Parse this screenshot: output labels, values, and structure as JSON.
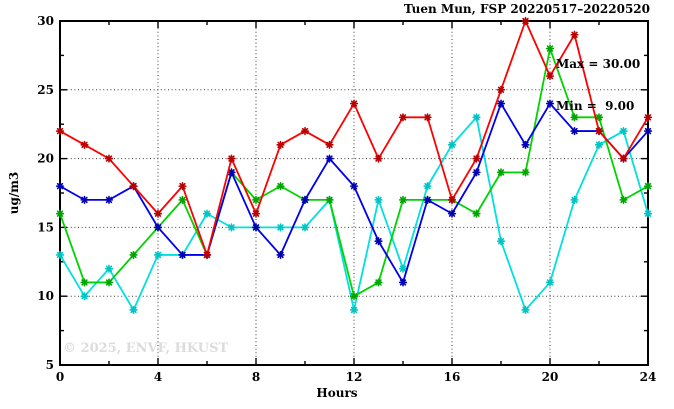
{
  "title": "Tuen Mun, FSP 20220517–20220520",
  "annotation": {
    "max_label": "Max = 30.00",
    "min_label": "Min =  9.00"
  },
  "watermark": "© 2025, ENVF, HKUST",
  "chart_data": {
    "type": "line",
    "title": "Tuen Mun, FSP 20220517–20220520",
    "xlabel": "Hours",
    "ylabel": "ug/m3",
    "xlim": [
      0,
      24
    ],
    "ylim": [
      5,
      30
    ],
    "x_major_ticks": [
      0,
      4,
      8,
      12,
      16,
      20,
      24
    ],
    "x_minor_step": 2,
    "y_major_ticks": [
      5,
      10,
      15,
      20,
      25,
      30
    ],
    "y_minor_step": 2.5,
    "x_grid": [
      4,
      8,
      12,
      16,
      20
    ],
    "y_grid": [
      10,
      15,
      20,
      25
    ],
    "grid_style": "dotted",
    "legend": "none",
    "stats": {
      "max": 30.0,
      "min": 9.0
    },
    "x": [
      0,
      1,
      2,
      3,
      4,
      5,
      6,
      7,
      8,
      9,
      10,
      11,
      12,
      13,
      14,
      15,
      16,
      17,
      18,
      19,
      20,
      21,
      22,
      23,
      24
    ],
    "series": [
      {
        "name": "cyan",
        "color": "#00e0e0",
        "marker_color": "#00c4c4",
        "values": [
          13,
          10,
          12,
          9,
          13,
          13,
          16,
          15,
          15,
          15,
          15,
          17,
          9,
          17,
          12,
          18,
          21,
          23,
          14,
          9,
          11,
          17,
          21,
          22,
          16
        ]
      },
      {
        "name": "green",
        "color": "#00d400",
        "marker_color": "#00a400",
        "values": [
          16,
          11,
          11,
          13,
          15,
          17,
          13,
          19,
          17,
          18,
          17,
          17,
          10,
          11,
          17,
          17,
          17,
          16,
          19,
          19,
          28,
          23,
          23,
          17,
          18
        ]
      },
      {
        "name": "blue",
        "color": "#0000ee",
        "marker_color": "#0000b0",
        "values": [
          18,
          17,
          17,
          18,
          15,
          13,
          13,
          19,
          15,
          13,
          17,
          20,
          18,
          14,
          11,
          17,
          16,
          19,
          24,
          21,
          24,
          22,
          22,
          20,
          22
        ]
      },
      {
        "name": "red",
        "color": "#ff0000",
        "marker_color": "#b80000",
        "values": [
          22,
          21,
          20,
          18,
          16,
          18,
          13,
          20,
          16,
          21,
          22,
          21,
          24,
          20,
          23,
          23,
          17,
          20,
          25,
          30,
          26,
          29,
          22,
          20,
          23
        ]
      }
    ]
  }
}
